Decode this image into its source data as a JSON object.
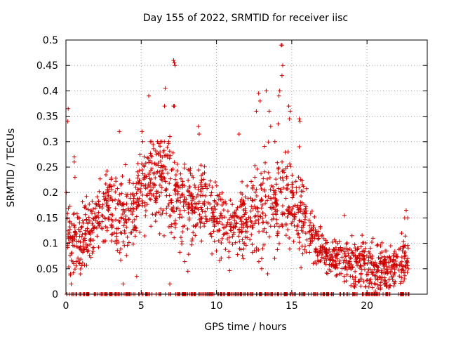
{
  "chart_data": {
    "type": "scatter",
    "title": "Day 155 of 2022, SRMTID for receiver iisc",
    "xlabel": "GPS time / hours",
    "ylabel": "SRMTID / TECUs",
    "xlim": [
      0,
      24
    ],
    "ylim": [
      0,
      0.5
    ],
    "x_ticks": [
      0,
      5,
      10,
      15,
      20
    ],
    "x_tick_labels": [
      "0",
      "5",
      "10",
      "15",
      "20"
    ],
    "y_ticks": [
      0,
      0.05,
      0.1,
      0.15,
      0.2,
      0.25,
      0.3,
      0.35,
      0.4,
      0.45,
      0.5
    ],
    "y_tick_labels": [
      "0",
      "0.05",
      "0.1",
      "0.15",
      "0.2",
      "0.25",
      "0.3",
      "0.35",
      "0.4",
      "0.45",
      "0.5"
    ],
    "grid": true,
    "marker": "+",
    "colors": {
      "series": "#cc0000",
      "grid": "#a0a0a0",
      "axes": "#000000"
    },
    "series": [
      {
        "name": "iisc",
        "trend": {
          "x": [
            0,
            0.5,
            1,
            1.5,
            2,
            2.5,
            3,
            3.5,
            4,
            4.5,
            5,
            5.5,
            6,
            6.5,
            7,
            7.5,
            8,
            8.5,
            9,
            9.5,
            10,
            10.5,
            11,
            11.5,
            12,
            12.5,
            13,
            13.5,
            14,
            14.5,
            15,
            15.5,
            16,
            16.5,
            17,
            17.5,
            18,
            18.5,
            19,
            19.5,
            20,
            20.5,
            21,
            21.5,
            22,
            22.5
          ],
          "y": [
            0.12,
            0.11,
            0.1,
            0.12,
            0.15,
            0.18,
            0.17,
            0.16,
            0.15,
            0.17,
            0.2,
            0.22,
            0.24,
            0.23,
            0.2,
            0.18,
            0.17,
            0.18,
            0.19,
            0.17,
            0.15,
            0.14,
            0.13,
            0.14,
            0.15,
            0.16,
            0.17,
            0.19,
            0.2,
            0.19,
            0.18,
            0.16,
            0.13,
            0.1,
            0.08,
            0.07,
            0.07,
            0.06,
            0.06,
            0.06,
            0.06,
            0.05,
            0.05,
            0.05,
            0.06,
            0.07
          ],
          "spread": [
            0.06,
            0.06,
            0.05,
            0.05,
            0.05,
            0.06,
            0.06,
            0.07,
            0.07,
            0.07,
            0.07,
            0.07,
            0.08,
            0.08,
            0.08,
            0.07,
            0.07,
            0.06,
            0.07,
            0.06,
            0.06,
            0.06,
            0.06,
            0.06,
            0.06,
            0.07,
            0.08,
            0.08,
            0.09,
            0.09,
            0.08,
            0.07,
            0.05,
            0.04,
            0.03,
            0.03,
            0.03,
            0.04,
            0.04,
            0.04,
            0.04,
            0.04,
            0.04,
            0.04,
            0.04,
            0.04
          ]
        },
        "points": [
          [
            0.15,
            0.365
          ],
          [
            0.12,
            0.34
          ],
          [
            0.02,
            0.2
          ],
          [
            0.55,
            0.27
          ],
          [
            0.55,
            0.26
          ],
          [
            0.6,
            0.23
          ],
          [
            0.3,
            0.04
          ],
          [
            0.35,
            0.02
          ],
          [
            3.55,
            0.32
          ],
          [
            5.05,
            0.32
          ],
          [
            5.1,
            0.3
          ],
          [
            5.5,
            0.39
          ],
          [
            6.6,
            0.405
          ],
          [
            6.55,
            0.37
          ],
          [
            7.15,
            0.46
          ],
          [
            7.2,
            0.455
          ],
          [
            7.25,
            0.45
          ],
          [
            7.15,
            0.37
          ],
          [
            7.2,
            0.37
          ],
          [
            6.9,
            0.31
          ],
          [
            8.8,
            0.33
          ],
          [
            8.85,
            0.315
          ],
          [
            11.5,
            0.315
          ],
          [
            12.65,
            0.36
          ],
          [
            12.8,
            0.395
          ],
          [
            12.9,
            0.38
          ],
          [
            13.3,
            0.4
          ],
          [
            13.5,
            0.36
          ],
          [
            13.6,
            0.33
          ],
          [
            14.3,
            0.49
          ],
          [
            14.35,
            0.49
          ],
          [
            14.4,
            0.45
          ],
          [
            14.35,
            0.43
          ],
          [
            14.2,
            0.4
          ],
          [
            14.15,
            0.39
          ],
          [
            14.8,
            0.37
          ],
          [
            14.9,
            0.36
          ],
          [
            14.85,
            0.345
          ],
          [
            14.1,
            0.335
          ],
          [
            15.5,
            0.345
          ],
          [
            15.55,
            0.34
          ],
          [
            15.5,
            0.29
          ],
          [
            14.75,
            0.28
          ],
          [
            16.9,
            0.13
          ],
          [
            17.3,
            0.08
          ],
          [
            18.5,
            0.155
          ],
          [
            19.0,
            0.115
          ],
          [
            20.4,
            0.11
          ],
          [
            20.9,
            0.095
          ],
          [
            21.3,
            0.085
          ],
          [
            22.6,
            0.165
          ],
          [
            22.7,
            0.15
          ],
          [
            22.5,
            0.15
          ],
          [
            22.3,
            0.12
          ],
          [
            13.4,
            0.04
          ],
          [
            13.0,
            0.05
          ],
          [
            6.9,
            0.02
          ],
          [
            8.1,
            0.045
          ],
          [
            3.8,
            0.02
          ],
          [
            4.7,
            0.035
          ]
        ]
      }
    ]
  }
}
